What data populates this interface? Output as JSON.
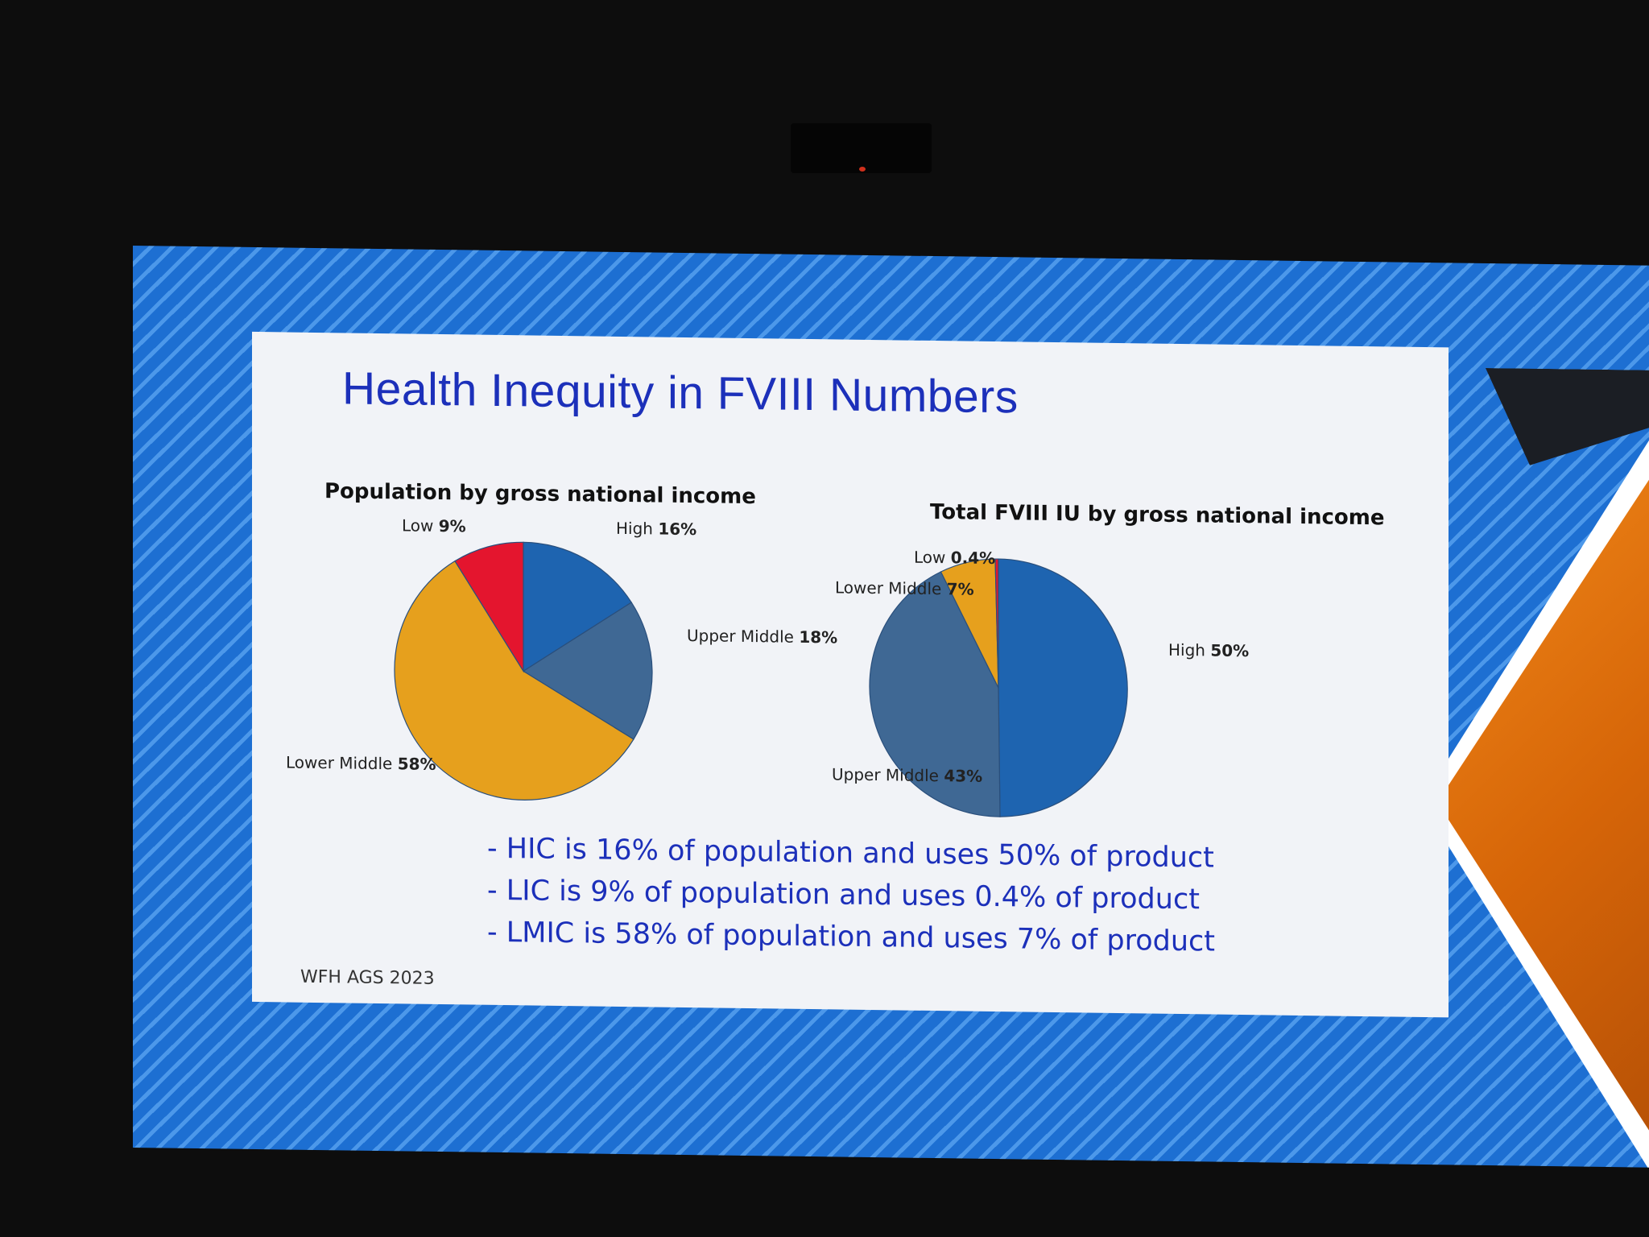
{
  "slide": {
    "title": "Health Inequity in FVIII Numbers",
    "bullets": [
      "- HIC is 16% of population and uses 50% of product",
      "- LIC is 9% of population and uses 0.4% of product",
      "- LMIC is 58% of population and uses 7% of product"
    ],
    "source": "WFH AGS 2023"
  },
  "colors": {
    "High": "#1e64b0",
    "Upper Middle": "#3f6894",
    "Lower Middle": "#e6a01d",
    "Low": "#e4152e",
    "title_text": "#1c30ba"
  },
  "chart_data": [
    {
      "type": "pie",
      "title": "Population by gross national income",
      "slices": [
        {
          "label": "High",
          "value": 16,
          "value_text": "16%"
        },
        {
          "label": "Upper Middle",
          "value": 18,
          "value_text": "18%"
        },
        {
          "label": "Lower Middle",
          "value": 58,
          "value_text": "58%"
        },
        {
          "label": "Low",
          "value": 9,
          "value_text": "9%"
        }
      ]
    },
    {
      "type": "pie",
      "title": "Total FVIII IU by gross national income",
      "slices": [
        {
          "label": "High",
          "value": 50,
          "value_text": "50%"
        },
        {
          "label": "Upper Middle",
          "value": 43,
          "value_text": "43%"
        },
        {
          "label": "Lower Middle",
          "value": 7,
          "value_text": "7%"
        },
        {
          "label": "Low",
          "value": 0.4,
          "value_text": "0.4%"
        }
      ]
    }
  ]
}
